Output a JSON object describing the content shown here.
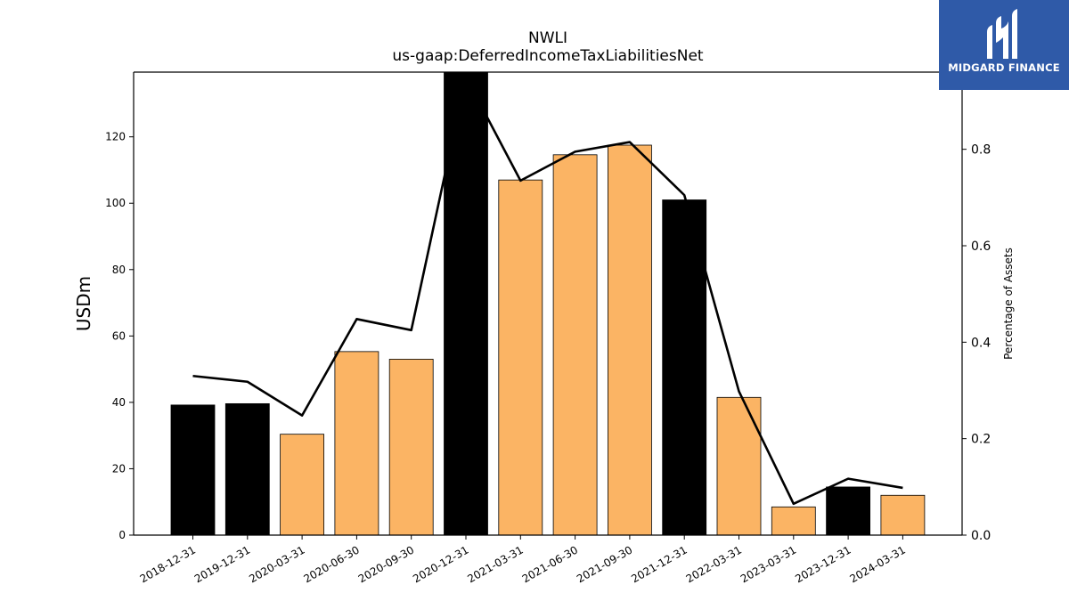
{
  "chart_data": {
    "type": "bar",
    "title": "NWLI",
    "subtitle": "us-gaap:DeferredIncomeTaxLiabilitiesNet",
    "ylabel": "USDm",
    "y2label": "Percentage of Assets",
    "categories": [
      "2018-12-31",
      "2019-12-31",
      "2020-03-31",
      "2020-06-30",
      "2020-09-30",
      "2020-12-31",
      "2021-03-31",
      "2021-06-30",
      "2021-09-30",
      "2021-12-31",
      "2022-03-31",
      "2023-03-31",
      "2023-12-31",
      "2024-03-31"
    ],
    "series": [
      {
        "values": [
          39.2,
          39.6,
          30.4,
          55.3,
          53.0,
          139.5,
          107.0,
          114.6,
          117.5,
          101.0,
          41.5,
          8.5,
          14.5,
          12.0
        ]
      },
      {
        "type": "line",
        "axis": "right",
        "values": [
          0.33,
          0.318,
          0.248,
          0.448,
          0.425,
          0.95,
          0.735,
          0.795,
          0.815,
          0.705,
          0.298,
          0.065,
          0.117,
          0.098
        ]
      }
    ],
    "bar_colors": [
      "#000000",
      "#000000",
      "#fbb464",
      "#fbb464",
      "#fbb464",
      "#000000",
      "#fbb464",
      "#fbb464",
      "#fbb464",
      "#000000",
      "#fbb464",
      "#fbb464",
      "#000000",
      "#fbb464"
    ],
    "ylim": [
      0,
      139.5
    ],
    "y2lim": [
      0,
      0.96
    ],
    "yticks": [
      0,
      20,
      40,
      60,
      80,
      100,
      120
    ],
    "y2ticks": [
      0.0,
      0.2,
      0.4,
      0.6,
      0.8
    ],
    "grid": false,
    "line_color": "#000000"
  },
  "logo": {
    "text": "MIDGARD FINANCE",
    "background": "#2f5aa8"
  }
}
